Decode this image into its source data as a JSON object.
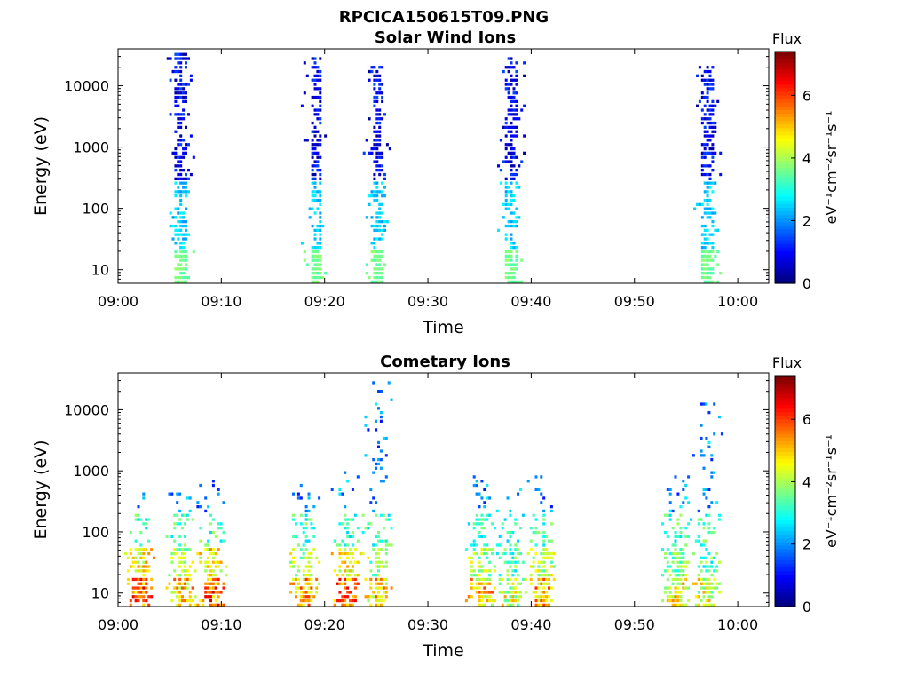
{
  "figure": {
    "title": "RPCICA150615T09.PNG"
  },
  "chart_data": [
    {
      "type": "heatmap",
      "title": "Solar Wind Ions",
      "xlabel": "Time",
      "ylabel": "Energy (eV)",
      "y_scale": "log",
      "ylim": [
        6,
        40000
      ],
      "xlim": [
        "09:00",
        "10:03"
      ],
      "x_ticks": [
        "09:00",
        "09:10",
        "09:20",
        "09:30",
        "09:40",
        "09:50",
        "10:00"
      ],
      "y_ticks": [
        {
          "value": 10,
          "label": "10"
        },
        {
          "value": 100,
          "label": "100"
        },
        {
          "value": 1000,
          "label": "1000"
        },
        {
          "value": 10000,
          "label": "10000"
        }
      ],
      "colorbar": {
        "title": "Flux",
        "label": "eV⁻¹cm⁻²sr⁻¹s⁻¹",
        "range": [
          0,
          7.4
        ],
        "ticks": [
          0,
          2,
          4,
          6
        ],
        "colormap": "jet"
      },
      "bursts": [
        {
          "time": "09:06",
          "emin": 5,
          "emax": 40000,
          "peak_flux": 3.5
        },
        {
          "time": "09:19",
          "emin": 5,
          "emax": 30000,
          "peak_flux": 3.3
        },
        {
          "time": "09:25",
          "emin": 5,
          "emax": 20000,
          "peak_flux": 3.3
        },
        {
          "time": "09:38",
          "emin": 5,
          "emax": 30000,
          "peak_flux": 3.8
        },
        {
          "time": "09:57",
          "emin": 5,
          "emax": 20000,
          "peak_flux": 3.4
        }
      ]
    },
    {
      "type": "heatmap",
      "title": "Cometary Ions",
      "xlabel": "Time",
      "ylabel": "Energy (eV)",
      "y_scale": "log",
      "ylim": [
        6,
        40000
      ],
      "xlim": [
        "09:00",
        "10:03"
      ],
      "x_ticks": [
        "09:00",
        "09:10",
        "09:20",
        "09:30",
        "09:40",
        "09:50",
        "10:00"
      ],
      "y_ticks": [
        {
          "value": 10,
          "label": "10"
        },
        {
          "value": 100,
          "label": "100"
        },
        {
          "value": 1000,
          "label": "1000"
        },
        {
          "value": 10000,
          "label": "10000"
        }
      ],
      "colorbar": {
        "title": "Flux",
        "label": "eV⁻¹cm⁻²sr⁻¹s⁻¹",
        "range": [
          0,
          7.4
        ],
        "ticks": [
          0,
          2,
          4,
          6
        ],
        "colormap": "jet"
      },
      "bursts": [
        {
          "time": "09:02",
          "emin": 5,
          "emax": 500,
          "peak_flux": 6.8
        },
        {
          "time": "09:06",
          "emin": 5,
          "emax": 400,
          "peak_flux": 6.0
        },
        {
          "time": "09:09",
          "emin": 5,
          "emax": 1000,
          "peak_flux": 6.8
        },
        {
          "time": "09:18",
          "emin": 5,
          "emax": 600,
          "peak_flux": 6.2
        },
        {
          "time": "09:22",
          "emin": 5,
          "emax": 1000,
          "peak_flux": 6.8
        },
        {
          "time": "09:25",
          "emin": 5,
          "emax": 35000,
          "peak_flux": 6.0
        },
        {
          "time": "09:35",
          "emin": 5,
          "emax": 800,
          "peak_flux": 6.0
        },
        {
          "time": "09:38",
          "emin": 5,
          "emax": 600,
          "peak_flux": 5.5
        },
        {
          "time": "09:41",
          "emin": 5,
          "emax": 800,
          "peak_flux": 6.2
        },
        {
          "time": "09:54",
          "emin": 5,
          "emax": 800,
          "peak_flux": 5.8
        },
        {
          "time": "09:57",
          "emin": 5,
          "emax": 15000,
          "peak_flux": 5.5
        }
      ]
    }
  ]
}
